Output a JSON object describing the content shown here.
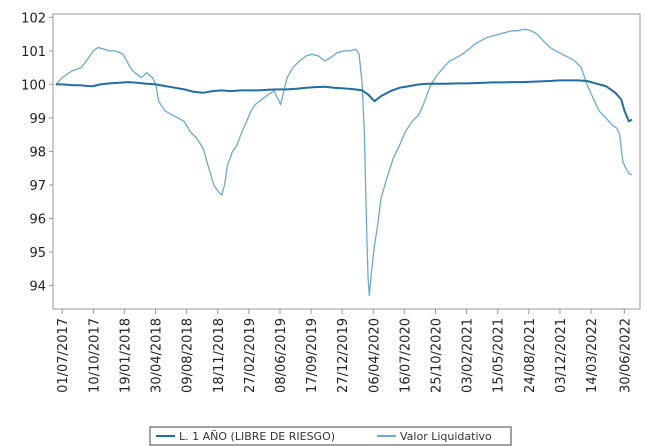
{
  "chart_data": {
    "type": "line",
    "title": "",
    "xlabel": "",
    "ylabel": "",
    "ylim": [
      93.3,
      102.1
    ],
    "xlim": [
      "2017-06-01",
      "2022-08-20"
    ],
    "grid": false,
    "legend_position": "bottom",
    "yticks": [
      94,
      95,
      96,
      97,
      98,
      99,
      100,
      101,
      102
    ],
    "xticks": [
      "01/07/2017",
      "10/10/2017",
      "19/01/2018",
      "30/04/2018",
      "09/08/2018",
      "18/11/2018",
      "27/02/2019",
      "08/06/2019",
      "17/09/2019",
      "27/12/2019",
      "06/04/2020",
      "16/07/2020",
      "25/10/2020",
      "03/02/2021",
      "15/05/2021",
      "24/08/2021",
      "03/12/2021",
      "14/03/2022",
      "30/06/2022"
    ],
    "series": [
      {
        "name": "L. 1 AÑO (LIBRE DE RIESGO)",
        "color": "#1f6fa5",
        "x": [
          "2017-06-10",
          "2017-07-01",
          "2017-08-01",
          "2017-09-01",
          "2017-09-25",
          "2017-10-10",
          "2017-11-01",
          "2017-12-01",
          "2018-01-01",
          "2018-02-01",
          "2018-03-01",
          "2018-04-01",
          "2018-05-01",
          "2018-06-01",
          "2018-07-01",
          "2018-08-01",
          "2018-09-01",
          "2018-10-01",
          "2018-11-01",
          "2018-12-01",
          "2019-01-01",
          "2019-02-01",
          "2019-03-01",
          "2019-04-01",
          "2019-05-01",
          "2019-06-01",
          "2019-07-01",
          "2019-08-01",
          "2019-09-01",
          "2019-10-01",
          "2019-11-01",
          "2019-12-01",
          "2020-01-01",
          "2020-02-01",
          "2020-03-01",
          "2020-03-20",
          "2020-04-10",
          "2020-05-01",
          "2020-06-01",
          "2020-07-01",
          "2020-08-01",
          "2020-09-01",
          "2020-10-01",
          "2020-11-01",
          "2020-12-01",
          "2021-01-01",
          "2021-02-01",
          "2021-03-01",
          "2021-04-01",
          "2021-05-01",
          "2021-06-01",
          "2021-07-01",
          "2021-08-01",
          "2021-09-01",
          "2021-10-01",
          "2021-11-01",
          "2021-12-01",
          "2022-01-01",
          "2022-02-01",
          "2022-03-01",
          "2022-04-01",
          "2022-05-01",
          "2022-06-01",
          "2022-06-20",
          "2022-07-01",
          "2022-07-15",
          "2022-07-25"
        ],
        "values": [
          100.0,
          100.0,
          99.98,
          99.97,
          99.95,
          99.95,
          100.0,
          100.03,
          100.05,
          100.07,
          100.05,
          100.02,
          100.0,
          99.95,
          99.9,
          99.85,
          99.78,
          99.75,
          99.8,
          99.82,
          99.8,
          99.82,
          99.82,
          99.82,
          99.84,
          99.85,
          99.85,
          99.87,
          99.9,
          99.92,
          99.93,
          99.9,
          99.88,
          99.86,
          99.82,
          99.7,
          99.5,
          99.65,
          99.8,
          99.9,
          99.95,
          100.0,
          100.02,
          100.02,
          100.02,
          100.03,
          100.03,
          100.04,
          100.05,
          100.06,
          100.06,
          100.07,
          100.07,
          100.08,
          100.09,
          100.1,
          100.12,
          100.12,
          100.12,
          100.1,
          100.02,
          99.95,
          99.75,
          99.55,
          99.2,
          98.9,
          98.95
        ]
      },
      {
        "name": "Valor Liquidativo",
        "color": "#6aaad6",
        "x": [
          "2017-06-10",
          "2017-07-01",
          "2017-08-01",
          "2017-09-01",
          "2017-09-25",
          "2017-10-10",
          "2017-10-25",
          "2017-11-15",
          "2017-12-01",
          "2017-12-20",
          "2018-01-15",
          "2018-02-01",
          "2018-02-15",
          "2018-03-01",
          "2018-03-15",
          "2018-04-01",
          "2018-04-20",
          "2018-05-01",
          "2018-05-10",
          "2018-06-01",
          "2018-07-01",
          "2018-08-01",
          "2018-08-20",
          "2018-09-10",
          "2018-10-01",
          "2018-10-20",
          "2018-11-05",
          "2018-11-20",
          "2018-12-01",
          "2018-12-10",
          "2018-12-20",
          "2019-01-05",
          "2019-01-20",
          "2019-02-05",
          "2019-02-20",
          "2019-03-05",
          "2019-03-20",
          "2019-04-10",
          "2019-05-01",
          "2019-05-20",
          "2019-06-10",
          "2019-07-01",
          "2019-07-20",
          "2019-08-10",
          "2019-09-01",
          "2019-09-20",
          "2019-10-10",
          "2019-11-01",
          "2019-11-20",
          "2019-12-10",
          "2020-01-01",
          "2020-01-20",
          "2020-02-10",
          "2020-02-20",
          "2020-03-01",
          "2020-03-08",
          "2020-03-12",
          "2020-03-16",
          "2020-03-20",
          "2020-03-24",
          "2020-04-01",
          "2020-04-10",
          "2020-04-20",
          "2020-05-01",
          "2020-05-20",
          "2020-06-10",
          "2020-07-01",
          "2020-07-20",
          "2020-08-10",
          "2020-09-01",
          "2020-09-20",
          "2020-10-10",
          "2020-11-01",
          "2020-11-20",
          "2020-12-10",
          "2021-01-01",
          "2021-01-20",
          "2021-02-10",
          "2021-03-01",
          "2021-03-20",
          "2021-04-10",
          "2021-05-01",
          "2021-05-20",
          "2021-06-10",
          "2021-07-01",
          "2021-07-20",
          "2021-08-10",
          "2021-09-01",
          "2021-09-20",
          "2021-10-10",
          "2021-11-01",
          "2021-11-20",
          "2021-12-10",
          "2022-01-01",
          "2022-01-20",
          "2022-02-10",
          "2022-03-01",
          "2022-03-20",
          "2022-04-10",
          "2022-05-01",
          "2022-05-20",
          "2022-06-05",
          "2022-06-15",
          "2022-06-25",
          "2022-07-05",
          "2022-07-15",
          "2022-07-25"
        ],
        "values": [
          100.0,
          100.2,
          100.4,
          100.5,
          100.8,
          101.0,
          101.1,
          101.05,
          101.0,
          101.0,
          100.9,
          100.6,
          100.4,
          100.3,
          100.2,
          100.35,
          100.2,
          100.0,
          99.5,
          99.2,
          99.05,
          98.9,
          98.6,
          98.4,
          98.1,
          97.5,
          97.0,
          96.8,
          96.7,
          97.0,
          97.6,
          98.0,
          98.2,
          98.6,
          98.9,
          99.2,
          99.4,
          99.55,
          99.7,
          99.8,
          99.4,
          100.2,
          100.5,
          100.7,
          100.85,
          100.9,
          100.85,
          100.7,
          100.8,
          100.95,
          101.0,
          101.0,
          101.05,
          100.9,
          100.0,
          98.5,
          97.0,
          95.5,
          94.2,
          93.7,
          94.5,
          95.2,
          95.8,
          96.6,
          97.2,
          97.8,
          98.2,
          98.6,
          98.9,
          99.1,
          99.5,
          100.0,
          100.3,
          100.5,
          100.7,
          100.8,
          100.9,
          101.05,
          101.2,
          101.3,
          101.4,
          101.45,
          101.5,
          101.55,
          101.6,
          101.6,
          101.65,
          101.6,
          101.5,
          101.3,
          101.1,
          101.0,
          100.9,
          100.8,
          100.7,
          100.5,
          100.0,
          99.6,
          99.2,
          99.0,
          98.8,
          98.7,
          98.5,
          97.7,
          97.5,
          97.35,
          97.3
        ]
      }
    ]
  }
}
